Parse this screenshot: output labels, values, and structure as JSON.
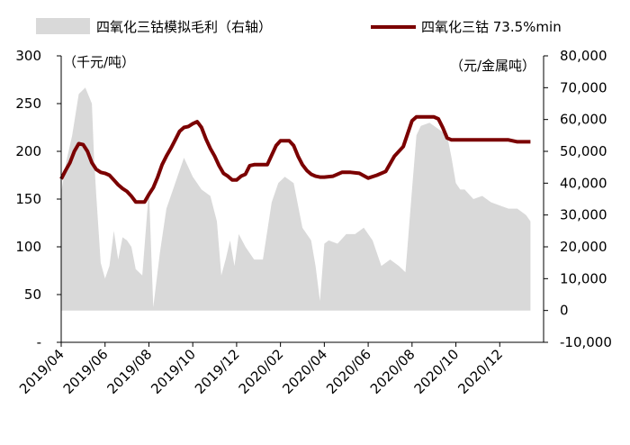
{
  "chart_data": {
    "type": "area+line",
    "legend": {
      "area_label": "四氧化三钴模拟毛利（右轴）",
      "line_label": "四氧化三钴 73.5%min",
      "placement": "top"
    },
    "left_axis": {
      "unit_label": "（千元/吨）",
      "range": [
        0,
        300
      ],
      "ticks": [
        "300",
        "250",
        "200",
        "150",
        "100",
        "50",
        "-"
      ]
    },
    "right_axis": {
      "unit_label": "（元/金属吨）",
      "range": [
        -10000,
        80000
      ],
      "ticks": [
        "80,000",
        "70,000",
        "60,000",
        "50,000",
        "40,000",
        "30,000",
        "20,000",
        "10,000",
        "0",
        "-10,000"
      ]
    },
    "x_axis": {
      "ticks": [
        "2019/04",
        "2019/06",
        "2019/08",
        "2019/10",
        "2019/12",
        "2020/02",
        "2020/04",
        "2020/06",
        "2020/08",
        "2020/10",
        "2020/12"
      ]
    },
    "grid": false,
    "colors": {
      "area": "#d9d9d9",
      "line": "#7b0000"
    },
    "series": [
      {
        "name": "四氧化三钴模拟毛利（右轴）",
        "axis": "right",
        "type": "area",
        "x": [
          0,
          0.12,
          0.25,
          0.4,
          0.55,
          0.7,
          0.75,
          0.8,
          0.9,
          1.0,
          1.1,
          1.2,
          1.3,
          1.4,
          1.5,
          1.6,
          1.7,
          1.85,
          2.0,
          2.1,
          2.25,
          2.4,
          2.6,
          2.8,
          3.0,
          3.2,
          3.4,
          3.55,
          3.65,
          3.75,
          3.85,
          3.95,
          4.05,
          4.2,
          4.4,
          4.6,
          4.8,
          4.95,
          5.1,
          5.3,
          5.5,
          5.7,
          5.8,
          5.9,
          6.0,
          6.1,
          6.3,
          6.5,
          6.7,
          6.9,
          7.1,
          7.3,
          7.5,
          7.7,
          7.85,
          8.0,
          8.1,
          8.2,
          8.4,
          8.6,
          8.8,
          8.9,
          9.0,
          9.1,
          9.2,
          9.4,
          9.6,
          9.8,
          10.0,
          10.2,
          10.4,
          10.6,
          10.7
        ],
        "y": [
          37000,
          47000,
          55000,
          68000,
          70000,
          65000,
          48000,
          36000,
          15000,
          10000,
          14000,
          25000,
          16000,
          23000,
          22000,
          20000,
          13000,
          11000,
          38000,
          1000,
          18000,
          32000,
          40000,
          48000,
          42000,
          38000,
          36000,
          28000,
          11000,
          16000,
          22000,
          14000,
          24000,
          20000,
          16000,
          16000,
          34000,
          40000,
          42000,
          40000,
          26000,
          22000,
          14000,
          3000,
          21000,
          22000,
          21000,
          24000,
          24000,
          26000,
          22000,
          14000,
          16000,
          14000,
          12000,
          38000,
          55000,
          58000,
          59000,
          57000,
          55000,
          48000,
          40000,
          38000,
          38000,
          35000,
          36000,
          34000,
          33000,
          32000,
          32000,
          30000,
          28000
        ]
      },
      {
        "name": "四氧化三钴 73.5%min",
        "axis": "left",
        "type": "line",
        "x": [
          0,
          0.1,
          0.2,
          0.3,
          0.4,
          0.5,
          0.6,
          0.7,
          0.8,
          0.9,
          1.0,
          1.1,
          1.2,
          1.3,
          1.4,
          1.5,
          1.6,
          1.7,
          1.8,
          1.9,
          2.0,
          2.1,
          2.2,
          2.3,
          2.4,
          2.5,
          2.6,
          2.7,
          2.8,
          2.9,
          3.0,
          3.1,
          3.2,
          3.3,
          3.4,
          3.5,
          3.6,
          3.7,
          3.8,
          3.9,
          4.0,
          4.1,
          4.2,
          4.3,
          4.4,
          4.5,
          4.6,
          4.7,
          4.8,
          4.9,
          5.0,
          5.1,
          5.2,
          5.3,
          5.4,
          5.5,
          5.6,
          5.7,
          5.8,
          5.9,
          6.0,
          6.2,
          6.4,
          6.6,
          6.8,
          7.0,
          7.2,
          7.4,
          7.6,
          7.8,
          8.0,
          8.1,
          8.2,
          8.3,
          8.4,
          8.5,
          8.6,
          8.7,
          8.8,
          8.9,
          9.0,
          9.1,
          9.2,
          9.4,
          9.6,
          9.8,
          10.0,
          10.2,
          10.4,
          10.6,
          10.7
        ],
        "y": [
          171,
          180,
          188,
          200,
          208,
          207,
          200,
          188,
          181,
          178,
          177,
          175,
          170,
          165,
          161,
          158,
          153,
          147,
          147,
          147,
          155,
          162,
          173,
          186,
          195,
          203,
          212,
          221,
          225,
          226,
          229,
          231,
          225,
          213,
          203,
          195,
          185,
          177,
          174,
          170,
          170,
          174,
          176,
          185,
          186,
          186,
          186,
          186,
          196,
          206,
          211,
          211,
          211,
          206,
          195,
          186,
          180,
          176,
          174,
          173,
          173,
          174,
          178,
          178,
          177,
          172,
          175,
          179,
          195,
          205,
          232,
          236,
          236,
          236,
          236,
          236,
          234,
          225,
          214,
          212,
          212,
          212,
          212,
          212,
          212,
          212,
          212,
          212,
          210,
          210,
          210
        ]
      }
    ]
  }
}
